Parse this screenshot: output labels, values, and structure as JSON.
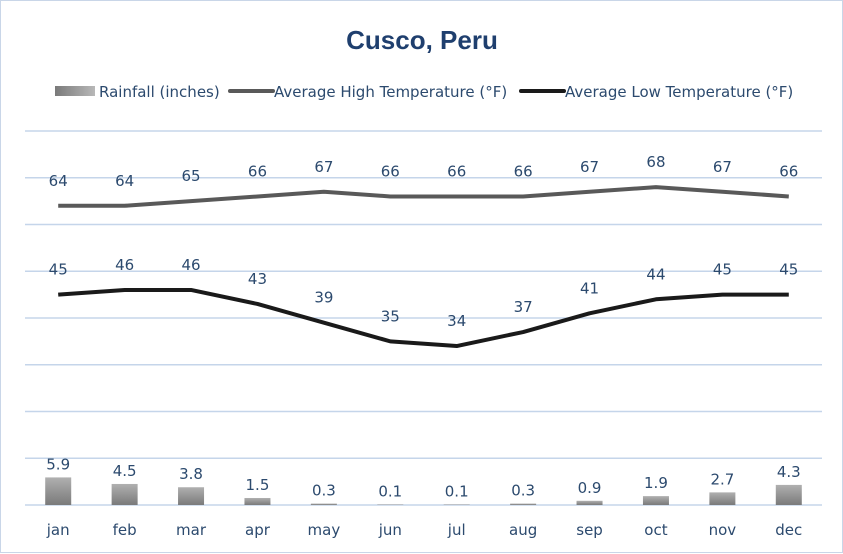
{
  "chart_data": {
    "type": "bar+line",
    "title": "Cusco, Peru",
    "categories": [
      "jan",
      "feb",
      "mar",
      "apr",
      "may",
      "jun",
      "jul",
      "aug",
      "sep",
      "oct",
      "nov",
      "dec"
    ],
    "series": [
      {
        "name": "Rainfall (inches)",
        "type": "bar",
        "color": "#8c8c8c",
        "values": [
          5.9,
          4.5,
          3.8,
          1.5,
          0.3,
          0.1,
          0.1,
          0.3,
          0.9,
          1.9,
          2.7,
          4.3
        ]
      },
      {
        "name": "Average High Temperature (°F)",
        "type": "line",
        "color": "#595959",
        "values": [
          64,
          64,
          65,
          66,
          67,
          66,
          66,
          66,
          67,
          68,
          67,
          66
        ]
      },
      {
        "name": "Average Low Temperature (°F)",
        "type": "line",
        "color": "#1a1a1a",
        "values": [
          45,
          46,
          46,
          43,
          39,
          35,
          34,
          37,
          41,
          44,
          45,
          45
        ]
      }
    ],
    "ylim": [
      0,
      80
    ],
    "ytick_step": 10,
    "grid": true,
    "legend": "top",
    "data_labels": true,
    "label_color": "#2c4a6e",
    "grid_color": "#c5d5ea"
  }
}
